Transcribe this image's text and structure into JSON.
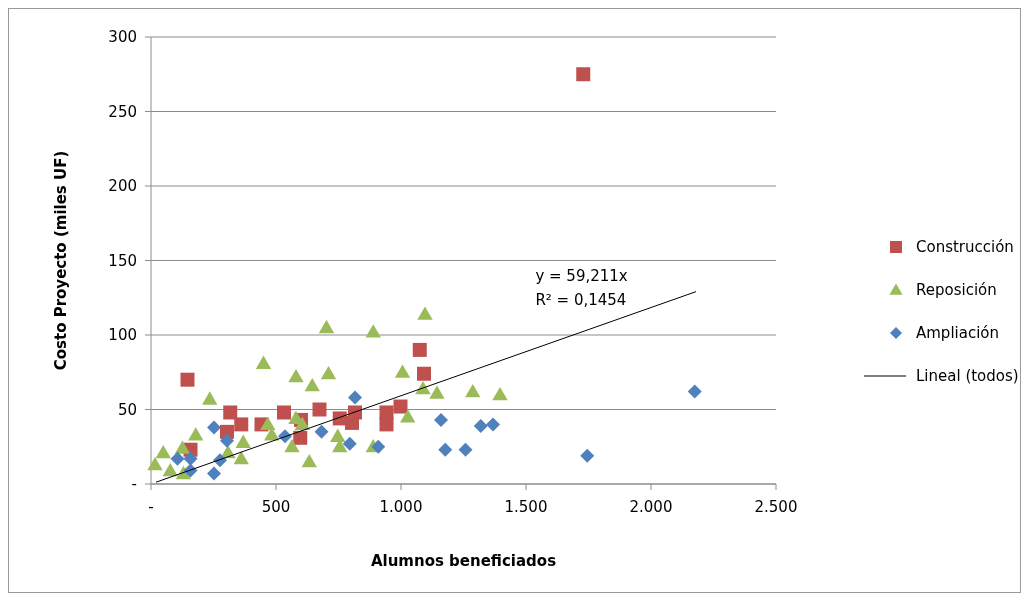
{
  "chart_data": {
    "type": "scatter",
    "xlabel": "Alumnos beneficiados",
    "ylabel": "Costo Proyecto (miles UF)",
    "xlim": [
      0,
      2500
    ],
    "xticks": [
      {
        "value": 0,
        "label": "-"
      },
      500,
      {
        "value": 1000,
        "label": "1.000"
      },
      {
        "value": 1500,
        "label": "1.500"
      },
      {
        "value": 2000,
        "label": "2.000"
      },
      {
        "value": 2500,
        "label": "2.500"
      }
    ],
    "ylim": [
      0,
      300
    ],
    "yticks": [
      {
        "value": 0,
        "label": "-"
      },
      50,
      100,
      150,
      200,
      250,
      300
    ],
    "grid": "y",
    "legend": "right",
    "annotations": [
      "y = 59,211x",
      "R² = 0,1454"
    ],
    "series": [
      {
        "name": "Construcción",
        "color": "#c0504d",
        "marker": "square",
        "x": [
          146,
          158,
          317,
          361,
          304,
          442,
          532,
          600,
          597,
          674,
          755,
          816,
          804,
          1075,
          1092,
          998,
          942,
          942,
          1729
        ],
        "values": [
          70,
          23,
          48,
          40,
          35,
          40,
          48,
          43,
          31,
          50,
          44,
          48,
          41,
          90,
          74,
          52,
          48,
          40,
          275
        ]
      },
      {
        "name": "Reposición",
        "color": "#9bbb59",
        "marker": "triangle",
        "x": [
          702,
          889,
          450,
          580,
          710,
          645,
          235,
          179,
          467,
          580,
          605,
          369,
          483,
          564,
          633,
          747,
          755,
          889,
          49,
          126,
          16,
          77,
          130,
          361,
          308,
          1096,
          1006,
          1088,
          1144,
          1287,
          1396,
          1027
        ],
        "values": [
          105,
          102,
          81,
          72,
          74,
          66,
          57,
          33,
          40,
          44,
          40,
          28,
          33,
          25,
          15,
          32,
          25,
          25,
          21,
          24,
          13,
          9,
          7,
          17,
          21,
          114,
          75,
          64,
          61,
          62,
          60,
          45
        ]
      },
      {
        "name": "Ampliación",
        "color": "#4f81bd",
        "marker": "diamond",
        "x": [
          252,
          304,
          252,
          276,
          106,
          158,
          158,
          536,
          682,
          795,
          816,
          1160,
          1319,
          1368,
          909,
          1177,
          1258,
          2175,
          1745
        ],
        "values": [
          38,
          29,
          7,
          16,
          17,
          17,
          9,
          32,
          35,
          27,
          58,
          43,
          39,
          40,
          25,
          23,
          23,
          62,
          19
        ]
      },
      {
        "name": "Lineal (todos)",
        "type": "line",
        "color": "#000000",
        "marker": "none",
        "line_style": "solid",
        "x": [
          20,
          2180
        ],
        "values": [
          1.2,
          129.1
        ]
      }
    ]
  }
}
